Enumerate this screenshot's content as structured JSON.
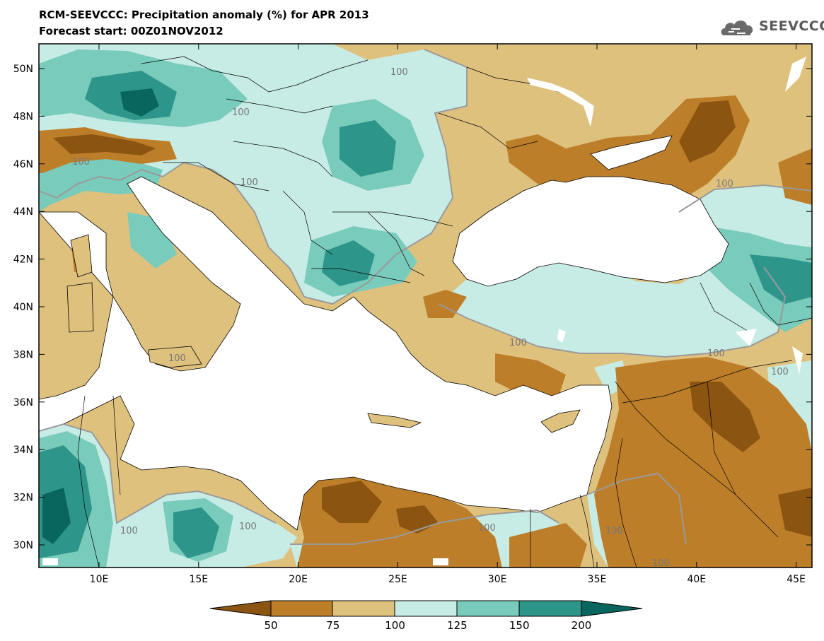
{
  "header": {
    "title": "RCM-SEEVCCC: Precipitation anomaly (%) for APR 2013",
    "subtitle": "Forecast start: 00Z01NOV2012"
  },
  "logo": {
    "text": "SEEVCCC",
    "icon": "cloud-icon",
    "color": "#5a5a5a"
  },
  "map": {
    "lat_labels": [
      "50N",
      "48N",
      "46N",
      "44N",
      "42N",
      "40N",
      "38N",
      "36N",
      "34N",
      "32N",
      "30N"
    ],
    "lon_labels": [
      "10E",
      "15E",
      "20E",
      "25E",
      "30E",
      "35E",
      "40E",
      "45E"
    ],
    "contour_label": "100"
  },
  "colorbar": {
    "labels": [
      "50",
      "75",
      "100",
      "125",
      "150",
      "200"
    ],
    "colors": {
      "below_50": "#8b5410",
      "50_75": "#bd7e2a",
      "75_100": "#dfc17e",
      "100_125": "#c7ece5",
      "125_150": "#79cbbb",
      "150_200": "#2e958a",
      "above_200": "#08665e"
    }
  }
}
